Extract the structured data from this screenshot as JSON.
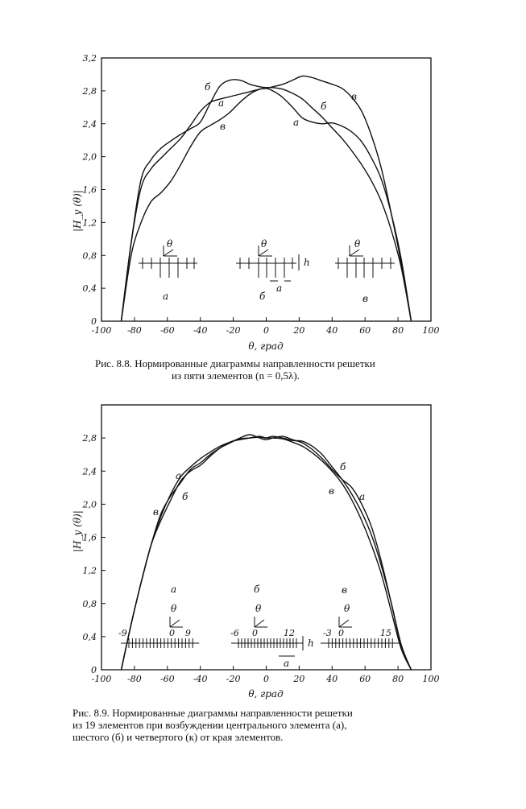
{
  "chart_data": [
    {
      "type": "line",
      "title": "",
      "xlabel": "θ, град",
      "ylabel": "|H_y (θ)|",
      "xlim": [
        -100,
        100
      ],
      "ylim": [
        0,
        3.2
      ],
      "x_ticks": [
        "-100",
        "-80",
        "-60",
        "-40",
        "-20",
        "0",
        "20",
        "40",
        "60",
        "80",
        "100"
      ],
      "y_ticks": [
        "0",
        "0,4",
        "0,8",
        "1,2",
        "1,6",
        "2,0",
        "2,4",
        "2,8",
        "3,2"
      ],
      "grid": false,
      "series": [
        {
          "name": "а",
          "x": [
            -88,
            -82,
            -76,
            -70,
            -64,
            -58,
            -52,
            -46,
            -40,
            -34,
            -28,
            -22,
            -16,
            -10,
            -4,
            0,
            4,
            10,
            16,
            22,
            28,
            34,
            40,
            46,
            52,
            58,
            64,
            70,
            76,
            82,
            88
          ],
          "y": [
            0,
            0.95,
            1.62,
            1.85,
            1.98,
            2.1,
            2.22,
            2.38,
            2.55,
            2.66,
            2.7,
            2.73,
            2.76,
            2.79,
            2.82,
            2.83,
            2.8,
            2.72,
            2.6,
            2.47,
            2.42,
            2.4,
            2.41,
            2.37,
            2.3,
            2.18,
            1.98,
            1.72,
            1.3,
            0.75,
            0
          ]
        },
        {
          "name": "б",
          "x": [
            -88,
            -82,
            -76,
            -70,
            -64,
            -58,
            -52,
            -46,
            -40,
            -34,
            -28,
            -22,
            -16,
            -10,
            -4,
            0,
            4,
            10,
            16,
            22,
            28,
            34,
            40,
            46,
            52,
            58,
            64,
            70,
            76,
            82,
            88
          ],
          "y": [
            0,
            0.95,
            1.72,
            1.96,
            2.1,
            2.19,
            2.27,
            2.34,
            2.42,
            2.65,
            2.86,
            2.93,
            2.93,
            2.88,
            2.85,
            2.84,
            2.84,
            2.82,
            2.77,
            2.7,
            2.59,
            2.48,
            2.35,
            2.22,
            2.07,
            1.9,
            1.7,
            1.45,
            1.1,
            0.65,
            0
          ]
        },
        {
          "name": "в",
          "x": [
            -88,
            -82,
            -76,
            -70,
            -64,
            -58,
            -52,
            -46,
            -40,
            -34,
            -28,
            -22,
            -16,
            -10,
            -4,
            0,
            4,
            10,
            16,
            22,
            28,
            34,
            40,
            46,
            52,
            58,
            64,
            70,
            76,
            82,
            88
          ],
          "y": [
            0,
            0.8,
            1.2,
            1.45,
            1.56,
            1.7,
            1.9,
            2.12,
            2.3,
            2.38,
            2.45,
            2.54,
            2.66,
            2.76,
            2.82,
            2.83,
            2.85,
            2.88,
            2.93,
            2.98,
            2.96,
            2.92,
            2.88,
            2.83,
            2.72,
            2.55,
            2.25,
            1.85,
            1.3,
            0.7,
            0
          ]
        }
      ],
      "curve_labels": [
        "б",
        "а",
        "в",
        "а",
        "б",
        "в"
      ],
      "inset_labels": [
        "а",
        "б",
        "в"
      ],
      "inset_symbols": [
        "θ",
        "h",
        "a"
      ]
    },
    {
      "type": "line",
      "title": "",
      "xlabel": "θ, град",
      "ylabel": "|H_y (θ)|",
      "xlim": [
        -100,
        100
      ],
      "ylim": [
        0,
        3.2
      ],
      "x_ticks": [
        "-100",
        "-80",
        "-60",
        "-40",
        "-20",
        "0",
        "20",
        "40",
        "60",
        "80",
        "100"
      ],
      "y_ticks": [
        "0",
        "0,4",
        "0,8",
        "1,2",
        "1,6",
        "2,0",
        "2,4",
        "2,8"
      ],
      "grid": false,
      "series": [
        {
          "name": "а",
          "x": [
            -88,
            -82,
            -76,
            -70,
            -64,
            -58,
            -52,
            -46,
            -40,
            -34,
            -28,
            -22,
            -16,
            -10,
            -4,
            0,
            4,
            10,
            16,
            22,
            28,
            34,
            40,
            46,
            52,
            58,
            64,
            70,
            76,
            82,
            88
          ],
          "y": [
            0,
            0.55,
            1.05,
            1.5,
            1.85,
            2.12,
            2.33,
            2.45,
            2.55,
            2.63,
            2.7,
            2.75,
            2.79,
            2.8,
            2.81,
            2.8,
            2.8,
            2.79,
            2.75,
            2.7,
            2.62,
            2.52,
            2.4,
            2.25,
            2.05,
            1.8,
            1.5,
            1.15,
            0.7,
            0.25,
            0
          ]
        },
        {
          "name": "б",
          "x": [
            -88,
            -82,
            -76,
            -70,
            -64,
            -58,
            -52,
            -46,
            -40,
            -34,
            -28,
            -22,
            -16,
            -10,
            -4,
            0,
            4,
            10,
            16,
            22,
            28,
            34,
            40,
            46,
            52,
            58,
            64,
            70,
            76,
            82,
            88
          ],
          "y": [
            0,
            0.55,
            1.05,
            1.5,
            1.88,
            2.1,
            2.26,
            2.42,
            2.5,
            2.6,
            2.68,
            2.75,
            2.78,
            2.8,
            2.82,
            2.8,
            2.82,
            2.8,
            2.77,
            2.76,
            2.7,
            2.6,
            2.45,
            2.3,
            2.12,
            1.9,
            1.62,
            1.25,
            0.8,
            0.3,
            0
          ]
        },
        {
          "name": "в",
          "x": [
            -88,
            -82,
            -76,
            -70,
            -64,
            -58,
            -52,
            -46,
            -40,
            -34,
            -28,
            -22,
            -16,
            -10,
            -4,
            0,
            4,
            10,
            16,
            22,
            28,
            34,
            40,
            46,
            52,
            58,
            64,
            70,
            76,
            82,
            88
          ],
          "y": [
            0,
            0.55,
            1.05,
            1.5,
            1.8,
            2.05,
            2.28,
            2.4,
            2.47,
            2.58,
            2.68,
            2.74,
            2.8,
            2.84,
            2.8,
            2.78,
            2.8,
            2.82,
            2.78,
            2.74,
            2.66,
            2.55,
            2.42,
            2.3,
            2.2,
            2.0,
            1.72,
            1.3,
            0.8,
            0.28,
            0
          ]
        }
      ],
      "curve_labels": [
        "а",
        "б",
        "в",
        "б",
        "в",
        "а"
      ],
      "inset_labels": [
        "а",
        "б",
        "в"
      ],
      "inset_numbers": [
        "-9",
        "0",
        "9",
        "-6",
        "0",
        "12",
        "-3",
        "0",
        "15"
      ],
      "inset_symbols": [
        "θ",
        "θ",
        "θ",
        "h",
        "a"
      ]
    }
  ],
  "captions": {
    "fig1_line1": "Рис. 8.8. Нормированные диаграммы направленности решетки",
    "fig1_line2": "из пяти элементов (n = 0,5λ).",
    "fig2_line1": "Рис. 8.9. Нормированные диаграммы направленности решетки",
    "fig2_line2": "из 19 элементов при возбуждении центрального элемента (а),",
    "fig2_line3": "шестого (б) и четвертого (к) от края элементов."
  }
}
